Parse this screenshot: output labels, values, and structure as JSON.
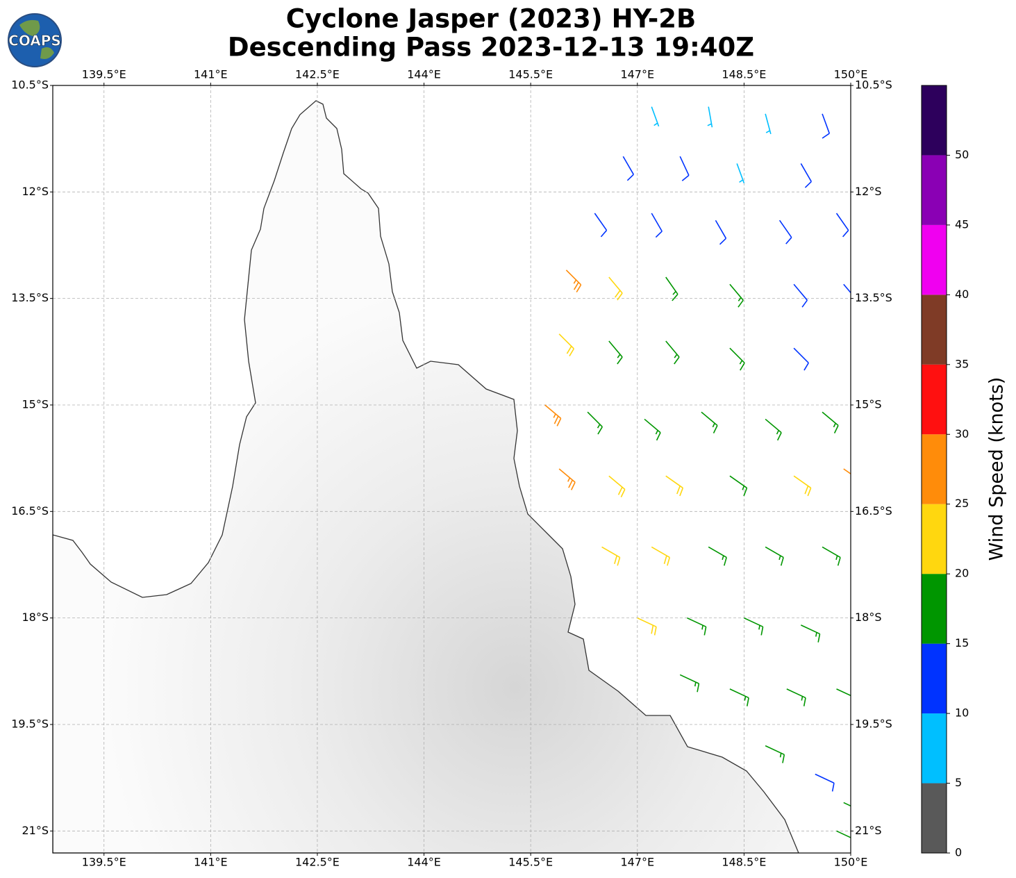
{
  "logo": "COAPS",
  "chart_data": {
    "type": "barbs",
    "title": "Cyclone Jasper (2023) HY-2B",
    "subtitle": "Descending Pass 2023-12-13 19:40Z",
    "xlim": [
      138.78,
      150
    ],
    "ylim": [
      -21.31,
      -10.5
    ],
    "xticks": [
      {
        "value": 139.5,
        "label": "139.5°E"
      },
      {
        "value": 141,
        "label": "141°E"
      },
      {
        "value": 142.5,
        "label": "142.5°E"
      },
      {
        "value": 144,
        "label": "144°E"
      },
      {
        "value": 145.5,
        "label": "145.5°E"
      },
      {
        "value": 147,
        "label": "147°E"
      },
      {
        "value": 148.5,
        "label": "148.5°E"
      },
      {
        "value": 150,
        "label": "150°E"
      }
    ],
    "yticks": [
      {
        "value": -10.5,
        "label": "10.5°S"
      },
      {
        "value": -12,
        "label": "12°S"
      },
      {
        "value": -13.5,
        "label": "13.5°S"
      },
      {
        "value": -15,
        "label": "15°S"
      },
      {
        "value": -16.5,
        "label": "16.5°S"
      },
      {
        "value": -18,
        "label": "18°S"
      },
      {
        "value": -19.5,
        "label": "19.5°S"
      },
      {
        "value": -21,
        "label": "21°S"
      }
    ],
    "grid": true,
    "barbs": {
      "lon": [
        147.2,
        148.0,
        148.8,
        149.6,
        146.8,
        147.6,
        148.4,
        149.3,
        146.4,
        147.2,
        148.1,
        149.0,
        149.8,
        146.0,
        146.6,
        147.4,
        148.3,
        149.2,
        149.9,
        145.9,
        146.6,
        147.4,
        148.3,
        149.2,
        145.7,
        146.3,
        147.1,
        147.9,
        148.8,
        149.6,
        145.9,
        146.6,
        147.4,
        148.3,
        149.2,
        149.9,
        146.5,
        147.2,
        148.0,
        148.8,
        149.6,
        147.0,
        147.7,
        148.5,
        149.3,
        147.6,
        148.3,
        149.1,
        149.8,
        148.8,
        149.5,
        149.9,
        149.8
      ],
      "lat": [
        -10.8,
        -10.8,
        -10.9,
        -10.9,
        -11.5,
        -11.5,
        -11.6,
        -11.6,
        -12.3,
        -12.3,
        -12.4,
        -12.4,
        -12.3,
        -13.1,
        -13.2,
        -13.2,
        -13.3,
        -13.3,
        -13.3,
        -14.0,
        -14.1,
        -14.1,
        -14.2,
        -14.2,
        -15.0,
        -15.1,
        -15.2,
        -15.1,
        -15.2,
        -15.1,
        -15.9,
        -16.0,
        -16.0,
        -16.0,
        -16.0,
        -15.9,
        -17.0,
        -17.0,
        -17.0,
        -17.0,
        -17.0,
        -18.0,
        -18.0,
        -18.0,
        -18.1,
        -18.8,
        -19.0,
        -19.0,
        -19.0,
        -19.8,
        -20.2,
        -20.6,
        -21.0
      ],
      "speed": [
        7,
        6,
        8,
        12,
        12,
        13,
        7,
        11,
        12,
        14,
        13,
        12,
        13,
        26,
        22,
        17,
        16,
        12,
        13,
        22,
        18,
        17,
        17,
        12,
        26,
        19,
        18,
        17,
        16,
        17,
        27,
        22,
        21,
        18,
        22,
        27,
        22,
        22,
        19,
        18,
        17,
        21,
        18,
        17,
        17,
        17,
        17,
        18,
        17,
        17,
        12,
        16,
        16
      ],
      "direction": [
        160,
        170,
        165,
        160,
        150,
        155,
        160,
        150,
        145,
        150,
        150,
        145,
        145,
        135,
        140,
        145,
        140,
        140,
        140,
        135,
        140,
        140,
        135,
        135,
        130,
        135,
        130,
        130,
        130,
        130,
        130,
        130,
        125,
        125,
        125,
        125,
        120,
        120,
        120,
        120,
        120,
        115,
        115,
        115,
        115,
        115,
        115,
        115,
        115,
        115,
        115,
        115,
        115
      ]
    },
    "colorbar": {
      "label": "Wind Speed (knots)",
      "lim": [
        0,
        55
      ],
      "ticks": [
        0,
        5,
        10,
        15,
        20,
        25,
        30,
        35,
        40,
        45,
        50
      ],
      "colors": [
        "#595959",
        "#00bfff",
        "#0033ff",
        "#009600",
        "#ffd70f",
        "#ff8c0a",
        "#ff1010",
        "#7f3b26",
        "#f000f0",
        "#8a00b4",
        "#2d005c"
      ]
    }
  }
}
